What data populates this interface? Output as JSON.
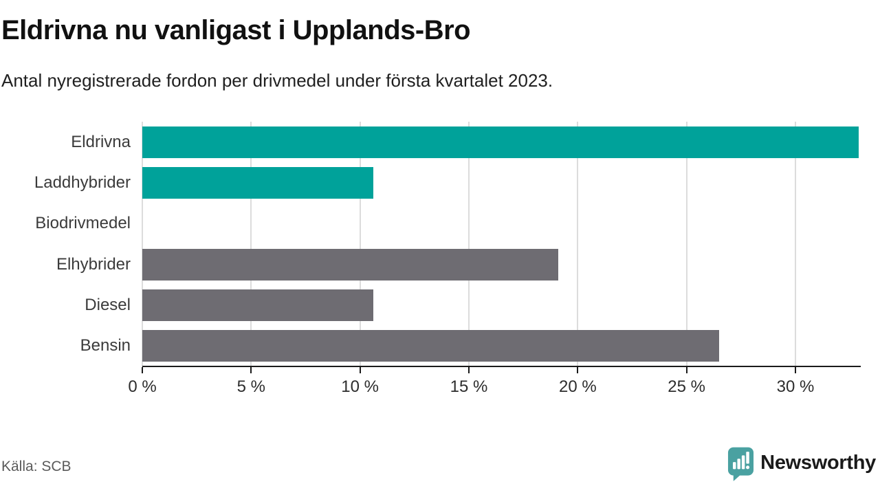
{
  "chart_data": {
    "type": "bar",
    "orientation": "horizontal",
    "title": "Eldrivna nu vanligast i Upplands-Bro",
    "subtitle": "Antal nyregistrerade fordon per drivmedel under första kvartalet 2023.",
    "categories": [
      "Eldrivna",
      "Laddhybrider",
      "Biodrivmedel",
      "Elhybrider",
      "Diesel",
      "Bensin"
    ],
    "values": [
      32.9,
      10.6,
      0,
      19.1,
      10.6,
      26.5
    ],
    "bar_colors": [
      "#00a29a",
      "#00a29a",
      "#00a29a",
      "#6e6c72",
      "#6e6c72",
      "#6e6c72"
    ],
    "xlabel": "",
    "ylabel": "",
    "xlim": [
      0,
      33
    ],
    "x_ticks": [
      {
        "value": 0,
        "label": "0 %"
      },
      {
        "value": 5,
        "label": "5 %"
      },
      {
        "value": 10,
        "label": "10 %"
      },
      {
        "value": 15,
        "label": "15 %"
      },
      {
        "value": 20,
        "label": "20 %"
      },
      {
        "value": 25,
        "label": "25 %"
      },
      {
        "value": 30,
        "label": "30 %"
      }
    ],
    "grid": true,
    "legend": "none"
  },
  "footer": {
    "source": "Källa: SCB",
    "brand": "Newsworthy"
  },
  "colors": {
    "accent_teal": "#00a29a",
    "neutral_gray": "#6e6c72",
    "brand_teal": "#4aa1a1",
    "gridline": "#dcdcdc",
    "axis": "#1a1a1a",
    "title_text": "#111111",
    "label_text": "#3b3b3b",
    "source_text": "#5a5a5a"
  },
  "icons": {
    "brand_icon": "newsworthy-speech-bubble-bar-chart-icon"
  }
}
